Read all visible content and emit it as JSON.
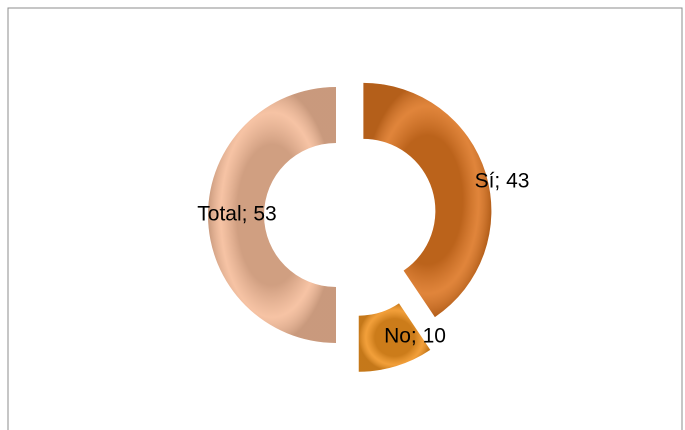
{
  "chart_data": {
    "type": "doughnut",
    "categories": [
      "Sí",
      "No",
      "Total"
    ],
    "values": [
      43,
      10,
      53
    ],
    "value_labels": [
      "Sí; 43",
      "No; 10",
      "Total; 53"
    ],
    "colors": [
      "#dc7420",
      "#f0921f",
      "#f5bb98"
    ]
  }
}
